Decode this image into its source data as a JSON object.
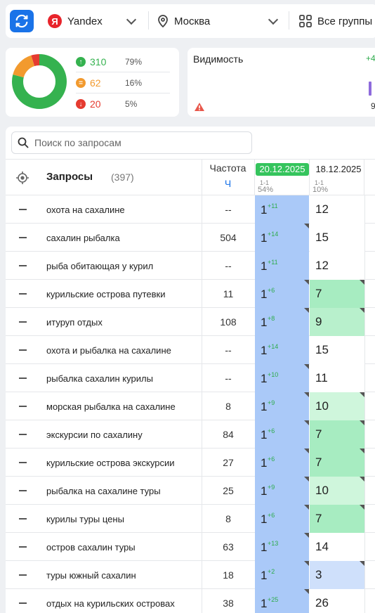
{
  "topbar": {
    "search_engine": "Yandex",
    "search_engine_logo": "Я",
    "region": "Москва",
    "groups": "Все группы"
  },
  "summary": {
    "up": {
      "value": "310",
      "pct": "79%",
      "icon": "arrow-up-icon",
      "color": "#35b24f"
    },
    "same": {
      "value": "62",
      "pct": "16%",
      "icon": "equals-icon",
      "color": "#f29a2e"
    },
    "down": {
      "value": "20",
      "pct": "5%",
      "icon": "arrow-down-icon",
      "color": "#e53b30"
    },
    "donut": {
      "up": 79,
      "same": 16,
      "down": 5
    }
  },
  "visibility": {
    "title": "Видимость",
    "delta": "+4",
    "value": "9"
  },
  "search": {
    "placeholder": "Поиск по запросам"
  },
  "table": {
    "header": {
      "queries": "Запросы",
      "count": "(397)",
      "frequency": "Частота",
      "frequency_unit": "Ч",
      "date1": "20.12.2025",
      "date1_sub": "1-1",
      "date1_pct": "54%",
      "date2": "18.12.2025",
      "date2_sub": "1-1",
      "date2_pct": "10%"
    },
    "rows": [
      {
        "q": "охота на сахалине",
        "freq": "--",
        "p1": "1",
        "d1": "+11",
        "p2": "12",
        "c2": "#ffffff",
        "corner1": false,
        "corner2": false
      },
      {
        "q": "сахалин рыбалка",
        "freq": "504",
        "p1": "1",
        "d1": "+14",
        "p2": "15",
        "c2": "#ffffff",
        "corner1": true,
        "corner2": false
      },
      {
        "q": "рыба обитающая у курил",
        "freq": "--",
        "p1": "1",
        "d1": "+11",
        "p2": "12",
        "c2": "#ffffff",
        "corner1": false,
        "corner2": false
      },
      {
        "q": "курильские острова путевки",
        "freq": "11",
        "p1": "1",
        "d1": "+6",
        "p2": "7",
        "c2": "#a7ecc1",
        "corner1": true,
        "corner2": true
      },
      {
        "q": "итуруп отдых",
        "freq": "108",
        "p1": "1",
        "d1": "+8",
        "p2": "9",
        "c2": "#b8f0cc",
        "corner1": true,
        "corner2": true
      },
      {
        "q": "охота и рыбалка на сахалине",
        "freq": "--",
        "p1": "1",
        "d1": "+14",
        "p2": "15",
        "c2": "#ffffff",
        "corner1": false,
        "corner2": false
      },
      {
        "q": "рыбалка сахалин курилы",
        "freq": "--",
        "p1": "1",
        "d1": "+10",
        "p2": "11",
        "c2": "#ffffff",
        "corner1": true,
        "corner2": false
      },
      {
        "q": "морская рыбалка на сахалине",
        "freq": "8",
        "p1": "1",
        "d1": "+9",
        "p2": "10",
        "c2": "#cff6dc",
        "corner1": true,
        "corner2": true
      },
      {
        "q": "экскурсии по сахалину",
        "freq": "84",
        "p1": "1",
        "d1": "+6",
        "p2": "7",
        "c2": "#a7ecc1",
        "corner1": true,
        "corner2": true
      },
      {
        "q": "курильские острова экскурсии",
        "freq": "27",
        "p1": "1",
        "d1": "+6",
        "p2": "7",
        "c2": "#a7ecc1",
        "corner1": true,
        "corner2": true
      },
      {
        "q": "рыбалка на сахалине туры",
        "freq": "25",
        "p1": "1",
        "d1": "+9",
        "p2": "10",
        "c2": "#cff6dc",
        "corner1": true,
        "corner2": true
      },
      {
        "q": "курилы туры цены",
        "freq": "8",
        "p1": "1",
        "d1": "+6",
        "p2": "7",
        "c2": "#a7ecc1",
        "corner1": true,
        "corner2": true
      },
      {
        "q": "остров сахалин туры",
        "freq": "63",
        "p1": "1",
        "d1": "+13",
        "p2": "14",
        "c2": "#ffffff",
        "corner1": true,
        "corner2": false
      },
      {
        "q": "туры южный сахалин",
        "freq": "18",
        "p1": "1",
        "d1": "+2",
        "p2": "3",
        "c2": "#cfe0fb",
        "corner1": true,
        "corner2": true
      },
      {
        "q": "отдых на курильских островах",
        "freq": "38",
        "p1": "1",
        "d1": "+25",
        "p2": "26",
        "c2": "#ffffff",
        "corner1": true,
        "corner2": false
      }
    ]
  }
}
